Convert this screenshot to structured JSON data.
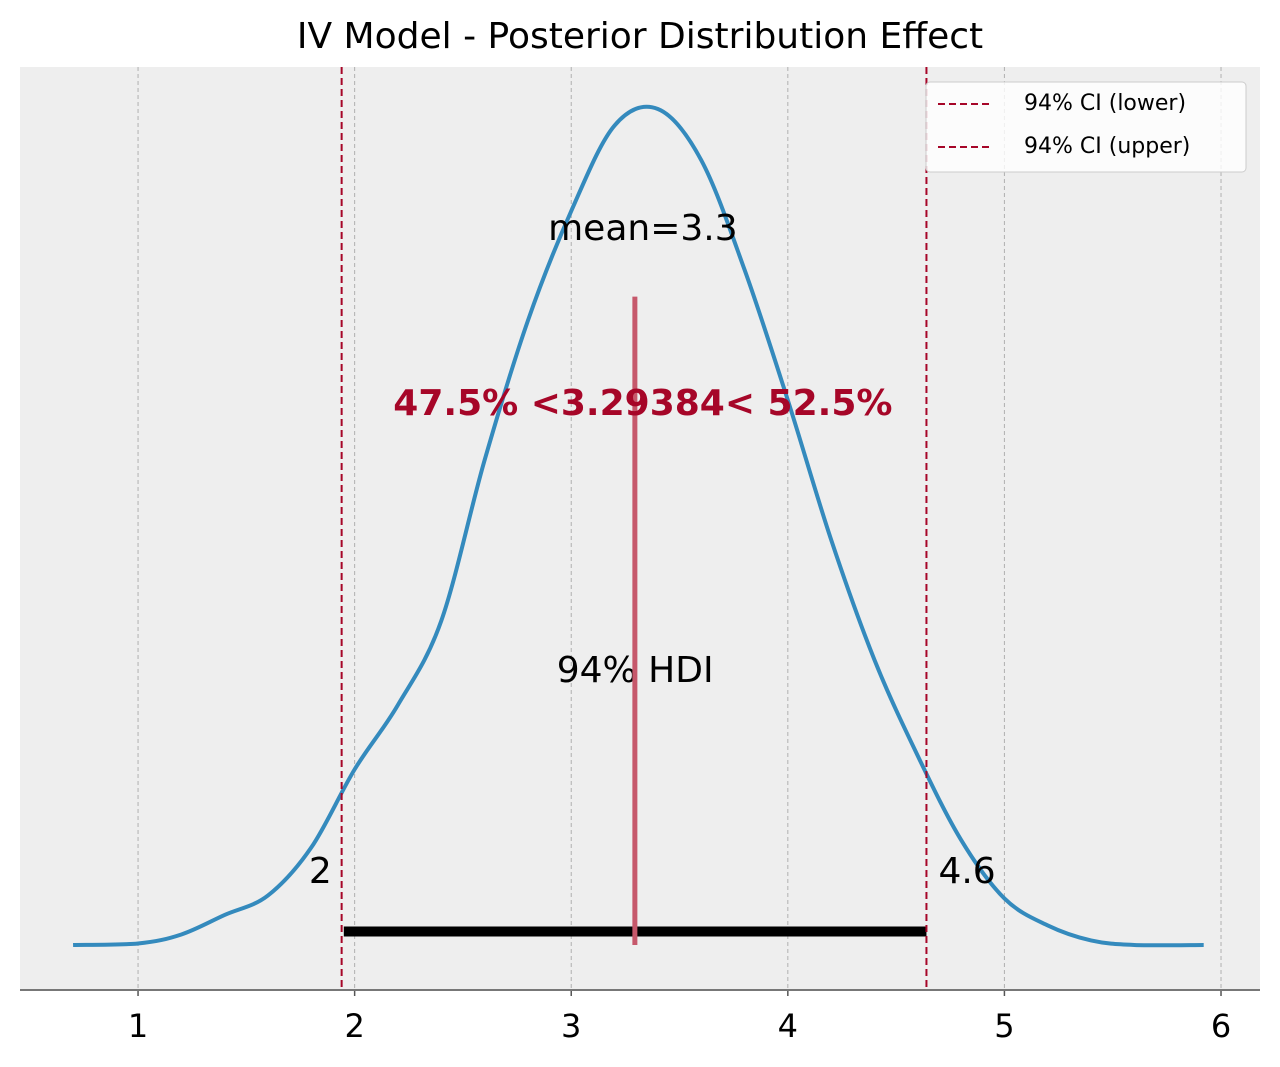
{
  "chart_data": {
    "type": "line",
    "title": "IV Model - Posterior Distribution Effect",
    "x": [
      0.7,
      1.0,
      1.2,
      1.4,
      1.6,
      1.8,
      2.0,
      2.2,
      2.4,
      2.6,
      2.8,
      3.0,
      3.2,
      3.4,
      3.6,
      3.8,
      4.0,
      4.2,
      4.4,
      4.6,
      4.8,
      5.0,
      5.2,
      5.4,
      5.6,
      5.92
    ],
    "series": [
      {
        "color": "#348abd",
        "values": [
          0,
          0.001,
          0.007,
          0.02,
          0.033,
          0.065,
          0.117,
          0.16,
          0.216,
          0.323,
          0.416,
          0.489,
          0.546,
          0.557,
          0.523,
          0.45,
          0.363,
          0.27,
          0.19,
          0.126,
          0.07,
          0.031,
          0.013,
          0.003,
          0,
          0
        ]
      }
    ],
    "xlim": [
      0.455,
      6.18
    ],
    "ylim": [
      -0.03,
      0.585
    ],
    "xticks": [
      1,
      2,
      3,
      4,
      5,
      6
    ],
    "grid": true,
    "mean_label": "mean=3.3",
    "reference": {
      "label": "47.5% <3.29384< 52.5%",
      "value": 3.29384,
      "ymax": 0.432,
      "color": "#c6586b",
      "label_color": "#a60628"
    },
    "hdi": {
      "label": "94% HDI",
      "lower": 1.95,
      "upper": 4.64,
      "lower_label": "2",
      "upper_label": "4.6",
      "height": 0.009,
      "color": "#000000"
    },
    "vlines": [
      {
        "name": "94% CI (lower)",
        "value": 1.94,
        "color": "#a60628"
      },
      {
        "name": "94% CI (upper)",
        "value": 4.64,
        "color": "#a60628"
      }
    ],
    "legend": "upper right"
  }
}
